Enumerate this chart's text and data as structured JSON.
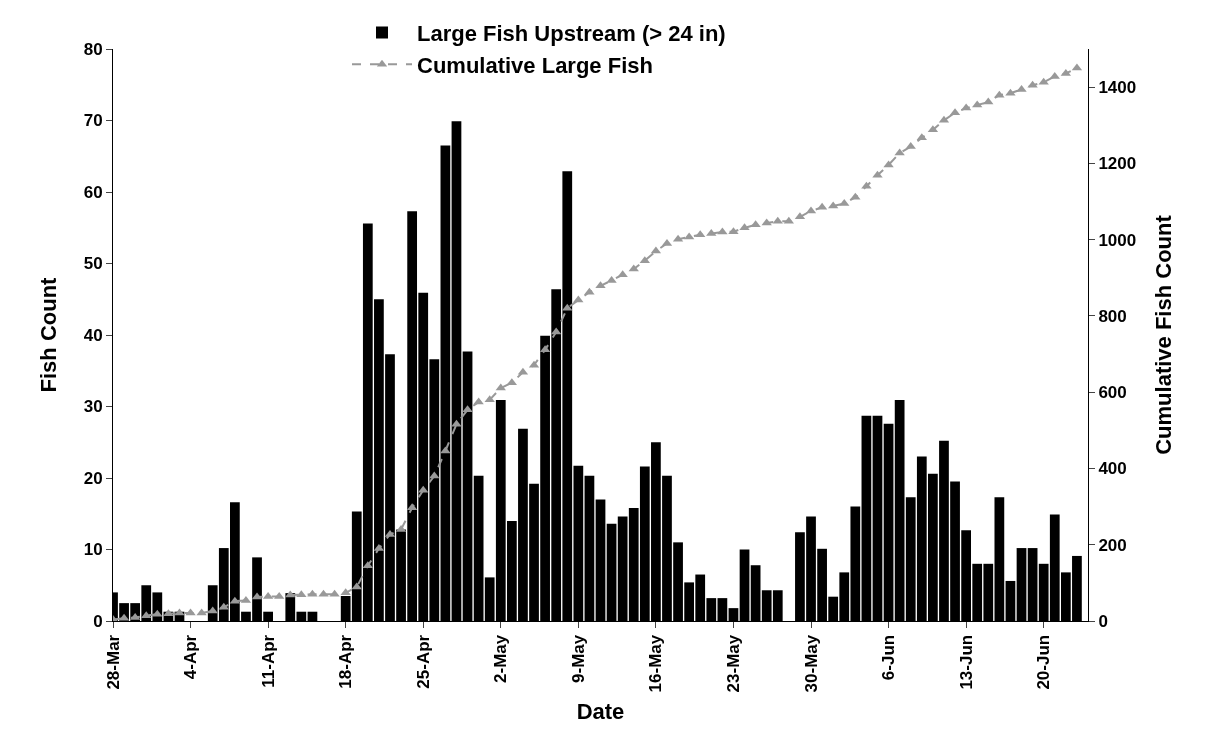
{
  "chart_data": {
    "type": "bar",
    "xlabel": "Date",
    "ylabel": "Fish Count",
    "y2label": "Cumulative Fish Count",
    "legend": "top",
    "grid": false,
    "x": [
      "--03-28",
      "--03-29",
      "--03-30",
      "--03-31",
      "--04-01",
      "--04-02",
      "--04-03",
      "--04-04",
      "--04-05",
      "--04-06",
      "--04-07",
      "--04-08",
      "--04-09",
      "--04-10",
      "--04-11",
      "--04-12",
      "--04-13",
      "--04-14",
      "--04-15",
      "--04-16",
      "--04-17",
      "--04-18",
      "--04-19",
      "--04-20",
      "--04-21",
      "--04-22",
      "--04-23",
      "--04-24",
      "--04-25",
      "--04-26",
      "--04-27",
      "--04-28",
      "--04-29",
      "--04-30",
      "--05-01",
      "--05-02",
      "--05-03",
      "--05-04",
      "--05-05",
      "--05-06",
      "--05-07",
      "--05-08",
      "--05-09",
      "--05-10",
      "--05-11",
      "--05-12",
      "--05-13",
      "--05-14",
      "--05-15",
      "--05-16",
      "--05-17",
      "--05-18",
      "--05-19",
      "--05-20",
      "--05-21",
      "--05-22",
      "--05-23",
      "--05-24",
      "--05-25",
      "--05-26",
      "--05-27",
      "--05-28",
      "--05-29",
      "--05-30",
      "--05-31",
      "--06-01",
      "--06-02",
      "--06-03",
      "--06-04",
      "--06-05",
      "--06-06",
      "--06-07",
      "--06-08",
      "--06-09",
      "--06-10",
      "--06-11",
      "--06-12",
      "--06-13",
      "--06-14",
      "--06-15",
      "--06-16",
      "--06-17",
      "--06-18",
      "--06-19",
      "--06-20",
      "--06-21",
      "--06-22",
      "--06-23"
    ],
    "series": [
      {
        "name": "Large Fish Upstream (> 24 in)",
        "color": "#000000",
        "values": [
          4,
          2.5,
          2.5,
          5,
          4,
          1.3,
          1.3,
          0,
          0,
          5,
          10.2,
          16.6,
          1.3,
          8.9,
          1.3,
          0,
          3.9,
          1.3,
          1.3,
          0,
          0,
          3.5,
          15.3,
          55.6,
          45,
          37.3,
          12.8,
          57.3,
          45.9,
          36.6,
          66.5,
          69.9,
          37.7,
          20.3,
          6.1,
          30.9,
          14,
          26.9,
          19.2,
          39.9,
          46.4,
          62.9,
          21.7,
          20.3,
          17,
          13.6,
          14.6,
          15.8,
          21.6,
          25,
          20.3,
          11,
          5.4,
          6.5,
          3.2,
          3.2,
          1.8,
          10,
          7.8,
          4.3,
          4.3,
          0,
          12.4,
          14.6,
          10.1,
          3.4,
          6.8,
          16,
          28.7,
          28.7,
          27.6,
          30.9,
          17.3,
          23,
          20.6,
          25.2,
          19.5,
          12.7,
          8,
          8,
          17.3,
          5.6,
          10.2,
          10.2,
          8,
          14.9,
          6.8,
          9.1
        ]
      },
      {
        "name": "Cumulative Large Fish",
        "type": "line",
        "axis": "y2",
        "color": "#999999",
        "marker": "triangle",
        "line_style": "dashed",
        "values": [
          4,
          7,
          9,
          14,
          18,
          19,
          21,
          21,
          21,
          26,
          36,
          52,
          54,
          63,
          64,
          64,
          68,
          69,
          70,
          70,
          70,
          74,
          89,
          145,
          190,
          227,
          240,
          297,
          343,
          380,
          446,
          516,
          554,
          574,
          580,
          611,
          625,
          652,
          671,
          711,
          758,
          820,
          842,
          862,
          879,
          893,
          908,
          923,
          945,
          970,
          990,
          1001,
          1007,
          1013,
          1016,
          1020,
          1021,
          1031,
          1039,
          1044,
          1048,
          1048,
          1060,
          1075,
          1085,
          1088,
          1095,
          1111,
          1140,
          1169,
          1196,
          1227,
          1244,
          1267,
          1288,
          1313,
          1333,
          1345,
          1353,
          1361,
          1379,
          1384,
          1394,
          1405,
          1413,
          1428,
          1436,
          1450
        ]
      }
    ],
    "xlim": [
      "--03-28",
      "--06-24"
    ],
    "xticks": [
      {
        "value": "--03-28",
        "label": "28-Mar"
      },
      {
        "value": "--04-04",
        "label": "4-Apr"
      },
      {
        "value": "--04-11",
        "label": "11-Apr"
      },
      {
        "value": "--04-18",
        "label": "18-Apr"
      },
      {
        "value": "--04-25",
        "label": "25-Apr"
      },
      {
        "value": "--05-02",
        "label": "2-May"
      },
      {
        "value": "--05-09",
        "label": "9-May"
      },
      {
        "value": "--05-16",
        "label": "16-May"
      },
      {
        "value": "--05-23",
        "label": "23-May"
      },
      {
        "value": "--05-30",
        "label": "30-May"
      },
      {
        "value": "--06-06",
        "label": "6-Jun"
      },
      {
        "value": "--06-13",
        "label": "13-Jun"
      },
      {
        "value": "--06-20",
        "label": "20-Jun"
      }
    ],
    "ylim": [
      0,
      80
    ],
    "yticks": [
      0,
      10,
      20,
      30,
      40,
      50,
      60,
      70,
      80
    ],
    "y2lim": [
      0,
      1500
    ],
    "y2ticks": [
      0,
      200,
      400,
      600,
      800,
      1000,
      1200,
      1400
    ]
  }
}
